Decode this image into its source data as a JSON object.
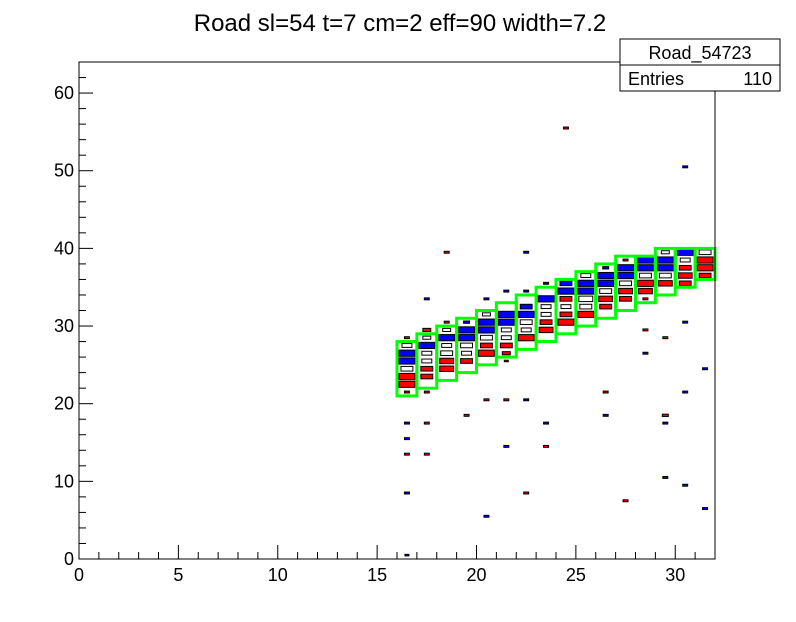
{
  "chart_data": {
    "type": "heatmap",
    "title": "Road sl=54 t=7 cm=2 eff=90 width=7.2",
    "xlim": [
      0,
      32
    ],
    "ylim": [
      0,
      64
    ],
    "x_ticks": [
      0,
      5,
      10,
      15,
      20,
      25,
      30
    ],
    "y_ticks": [
      0,
      10,
      20,
      30,
      40,
      50,
      60
    ],
    "grid": false,
    "stats_box": {
      "name": "Road_54723",
      "entries_label": "Entries",
      "entries_value": "110"
    },
    "colors": {
      "red": "#ff0000",
      "blue": "#0000ff",
      "white": "#ffffff",
      "road": "#00ff00",
      "outline": "#000000"
    },
    "cells": [
      {
        "x": 16,
        "y": 0,
        "c": "blue",
        "s": 0.2
      },
      {
        "x": 16,
        "y": 8,
        "c": "blue",
        "s": 0.25
      },
      {
        "x": 16,
        "y": 13,
        "c": "red",
        "s": 0.25
      },
      {
        "x": 16,
        "y": 15,
        "c": "blue",
        "s": 0.25
      },
      {
        "x": 16,
        "y": 17,
        "c": "blue",
        "s": 0.25
      },
      {
        "x": 16,
        "y": 21,
        "c": "red",
        "s": 0.25
      },
      {
        "x": 16,
        "y": 22,
        "c": "red",
        "s": 0.8
      },
      {
        "x": 16,
        "y": 23,
        "c": "red",
        "s": 0.8
      },
      {
        "x": 16,
        "y": 24,
        "c": "white",
        "s": 0.6
      },
      {
        "x": 16,
        "y": 25,
        "c": "blue",
        "s": 0.8
      },
      {
        "x": 16,
        "y": 26,
        "c": "blue",
        "s": 0.8
      },
      {
        "x": 16,
        "y": 27,
        "c": "white",
        "s": 0.5
      },
      {
        "x": 16,
        "y": 28,
        "c": "red",
        "s": 0.25
      },
      {
        "x": 17,
        "y": 13,
        "c": "red",
        "s": 0.25
      },
      {
        "x": 17,
        "y": 17,
        "c": "red",
        "s": 0.25
      },
      {
        "x": 17,
        "y": 21,
        "c": "red",
        "s": 0.25
      },
      {
        "x": 17,
        "y": 23,
        "c": "red",
        "s": 0.6
      },
      {
        "x": 17,
        "y": 24,
        "c": "red",
        "s": 0.6
      },
      {
        "x": 17,
        "y": 25,
        "c": "white",
        "s": 0.5
      },
      {
        "x": 17,
        "y": 26,
        "c": "white",
        "s": 0.5
      },
      {
        "x": 17,
        "y": 27,
        "c": "blue",
        "s": 0.8
      },
      {
        "x": 17,
        "y": 28,
        "c": "white",
        "s": 0.4
      },
      {
        "x": 17,
        "y": 29,
        "c": "red",
        "s": 0.4
      },
      {
        "x": 17,
        "y": 33,
        "c": "blue",
        "s": 0.25
      },
      {
        "x": 18,
        "y": 24,
        "c": "red",
        "s": 0.7
      },
      {
        "x": 18,
        "y": 25,
        "c": "red",
        "s": 0.7
      },
      {
        "x": 18,
        "y": 26,
        "c": "white",
        "s": 0.6
      },
      {
        "x": 18,
        "y": 27,
        "c": "white",
        "s": 0.5
      },
      {
        "x": 18,
        "y": 28,
        "c": "blue",
        "s": 0.8
      },
      {
        "x": 18,
        "y": 29,
        "c": "white",
        "s": 0.4
      },
      {
        "x": 18,
        "y": 30,
        "c": "red",
        "s": 0.25
      },
      {
        "x": 18,
        "y": 39,
        "c": "red",
        "s": 0.25
      },
      {
        "x": 19,
        "y": 18,
        "c": "red",
        "s": 0.25
      },
      {
        "x": 19,
        "y": 25,
        "c": "red",
        "s": 0.6
      },
      {
        "x": 19,
        "y": 26,
        "c": "white",
        "s": 0.5
      },
      {
        "x": 19,
        "y": 27,
        "c": "white",
        "s": 0.6
      },
      {
        "x": 19,
        "y": 28,
        "c": "blue",
        "s": 0.8
      },
      {
        "x": 19,
        "y": 29,
        "c": "blue",
        "s": 0.8
      },
      {
        "x": 19,
        "y": 30,
        "c": "blue",
        "s": 0.3
      },
      {
        "x": 20,
        "y": 5,
        "c": "blue",
        "s": 0.25
      },
      {
        "x": 20,
        "y": 20,
        "c": "red",
        "s": 0.25
      },
      {
        "x": 20,
        "y": 26,
        "c": "red",
        "s": 0.8
      },
      {
        "x": 20,
        "y": 27,
        "c": "red",
        "s": 0.6
      },
      {
        "x": 20,
        "y": 28,
        "c": "white",
        "s": 0.6
      },
      {
        "x": 20,
        "y": 29,
        "c": "blue",
        "s": 0.8
      },
      {
        "x": 20,
        "y": 30,
        "c": "blue",
        "s": 0.8
      },
      {
        "x": 20,
        "y": 31,
        "c": "white",
        "s": 0.4
      },
      {
        "x": 20,
        "y": 33,
        "c": "blue",
        "s": 0.25
      },
      {
        "x": 21,
        "y": 14,
        "c": "blue",
        "s": 0.25
      },
      {
        "x": 21,
        "y": 20,
        "c": "red",
        "s": 0.25
      },
      {
        "x": 21,
        "y": 25,
        "c": "red",
        "s": 0.2
      },
      {
        "x": 21,
        "y": 26,
        "c": "red",
        "s": 0.4
      },
      {
        "x": 21,
        "y": 27,
        "c": "red",
        "s": 0.6
      },
      {
        "x": 21,
        "y": 28,
        "c": "white",
        "s": 0.5
      },
      {
        "x": 21,
        "y": 29,
        "c": "white",
        "s": 0.5
      },
      {
        "x": 21,
        "y": 30,
        "c": "blue",
        "s": 0.8
      },
      {
        "x": 21,
        "y": 31,
        "c": "blue",
        "s": 0.8
      },
      {
        "x": 21,
        "y": 34,
        "c": "blue",
        "s": 0.25
      },
      {
        "x": 22,
        "y": 8,
        "c": "red",
        "s": 0.25
      },
      {
        "x": 22,
        "y": 20,
        "c": "blue",
        "s": 0.25
      },
      {
        "x": 22,
        "y": 28,
        "c": "red",
        "s": 0.8
      },
      {
        "x": 22,
        "y": 29,
        "c": "white",
        "s": 0.5
      },
      {
        "x": 22,
        "y": 30,
        "c": "white",
        "s": 0.6
      },
      {
        "x": 22,
        "y": 31,
        "c": "blue",
        "s": 0.8
      },
      {
        "x": 22,
        "y": 32,
        "c": "blue",
        "s": 0.6
      },
      {
        "x": 22,
        "y": 34,
        "c": "blue",
        "s": 0.25
      },
      {
        "x": 22,
        "y": 39,
        "c": "blue",
        "s": 0.25
      },
      {
        "x": 23,
        "y": 14,
        "c": "red",
        "s": 0.25
      },
      {
        "x": 23,
        "y": 17,
        "c": "blue",
        "s": 0.25
      },
      {
        "x": 23,
        "y": 29,
        "c": "red",
        "s": 0.7
      },
      {
        "x": 23,
        "y": 30,
        "c": "red",
        "s": 0.6
      },
      {
        "x": 23,
        "y": 31,
        "c": "white",
        "s": 0.5
      },
      {
        "x": 23,
        "y": 32,
        "c": "white",
        "s": 0.5
      },
      {
        "x": 23,
        "y": 33,
        "c": "blue",
        "s": 0.8
      },
      {
        "x": 23,
        "y": 35,
        "c": "blue",
        "s": 0.25
      },
      {
        "x": 24,
        "y": 30,
        "c": "red",
        "s": 0.8
      },
      {
        "x": 24,
        "y": 31,
        "c": "red",
        "s": 0.6
      },
      {
        "x": 24,
        "y": 32,
        "c": "white",
        "s": 0.5
      },
      {
        "x": 24,
        "y": 33,
        "c": "red",
        "s": 0.6
      },
      {
        "x": 24,
        "y": 34,
        "c": "blue",
        "s": 0.8
      },
      {
        "x": 24,
        "y": 35,
        "c": "blue",
        "s": 0.6
      },
      {
        "x": 24,
        "y": 55,
        "c": "red",
        "s": 0.25
      },
      {
        "x": 25,
        "y": 31,
        "c": "red",
        "s": 0.8
      },
      {
        "x": 25,
        "y": 32,
        "c": "white",
        "s": 0.6
      },
      {
        "x": 25,
        "y": 33,
        "c": "white",
        "s": 0.7
      },
      {
        "x": 25,
        "y": 34,
        "c": "blue",
        "s": 0.8
      },
      {
        "x": 25,
        "y": 35,
        "c": "blue",
        "s": 0.8
      },
      {
        "x": 25,
        "y": 36,
        "c": "white",
        "s": 0.5
      },
      {
        "x": 26,
        "y": 18,
        "c": "blue",
        "s": 0.25
      },
      {
        "x": 26,
        "y": 21,
        "c": "red",
        "s": 0.25
      },
      {
        "x": 26,
        "y": 32,
        "c": "red",
        "s": 0.6
      },
      {
        "x": 26,
        "y": 33,
        "c": "red",
        "s": 0.7
      },
      {
        "x": 26,
        "y": 34,
        "c": "white",
        "s": 0.6
      },
      {
        "x": 26,
        "y": 35,
        "c": "blue",
        "s": 0.8
      },
      {
        "x": 26,
        "y": 36,
        "c": "blue",
        "s": 0.8
      },
      {
        "x": 26,
        "y": 37,
        "c": "blue",
        "s": 0.3
      },
      {
        "x": 27,
        "y": 7,
        "c": "red",
        "s": 0.25
      },
      {
        "x": 27,
        "y": 33,
        "c": "red",
        "s": 0.6
      },
      {
        "x": 27,
        "y": 34,
        "c": "red",
        "s": 0.7
      },
      {
        "x": 27,
        "y": 35,
        "c": "white",
        "s": 0.6
      },
      {
        "x": 27,
        "y": 36,
        "c": "blue",
        "s": 0.8
      },
      {
        "x": 27,
        "y": 37,
        "c": "blue",
        "s": 0.8
      },
      {
        "x": 27,
        "y": 38,
        "c": "red",
        "s": 0.25
      },
      {
        "x": 28,
        "y": 26,
        "c": "blue",
        "s": 0.25
      },
      {
        "x": 28,
        "y": 29,
        "c": "red",
        "s": 0.25
      },
      {
        "x": 28,
        "y": 33,
        "c": "red",
        "s": 0.25
      },
      {
        "x": 28,
        "y": 34,
        "c": "red",
        "s": 0.7
      },
      {
        "x": 28,
        "y": 35,
        "c": "red",
        "s": 0.8
      },
      {
        "x": 28,
        "y": 36,
        "c": "white",
        "s": 0.6
      },
      {
        "x": 28,
        "y": 37,
        "c": "blue",
        "s": 0.8
      },
      {
        "x": 28,
        "y": 38,
        "c": "blue",
        "s": 0.8
      },
      {
        "x": 29,
        "y": 10,
        "c": "blue",
        "s": 0.25
      },
      {
        "x": 29,
        "y": 17,
        "c": "blue",
        "s": 0.25
      },
      {
        "x": 29,
        "y": 18,
        "c": "red",
        "s": 0.3
      },
      {
        "x": 29,
        "y": 28,
        "c": "red",
        "s": 0.25
      },
      {
        "x": 29,
        "y": 35,
        "c": "red",
        "s": 0.7
      },
      {
        "x": 29,
        "y": 36,
        "c": "white",
        "s": 0.6
      },
      {
        "x": 29,
        "y": 37,
        "c": "blue",
        "s": 0.8
      },
      {
        "x": 29,
        "y": 38,
        "c": "blue",
        "s": 0.8
      },
      {
        "x": 29,
        "y": 39,
        "c": "white",
        "s": 0.4
      },
      {
        "x": 30,
        "y": 9,
        "c": "blue",
        "s": 0.25
      },
      {
        "x": 30,
        "y": 21,
        "c": "blue",
        "s": 0.25
      },
      {
        "x": 30,
        "y": 30,
        "c": "blue",
        "s": 0.25
      },
      {
        "x": 30,
        "y": 35,
        "c": "red",
        "s": 0.6
      },
      {
        "x": 30,
        "y": 36,
        "c": "red",
        "s": 0.7
      },
      {
        "x": 30,
        "y": 37,
        "c": "red",
        "s": 0.6
      },
      {
        "x": 30,
        "y": 38,
        "c": "white",
        "s": 0.5
      },
      {
        "x": 30,
        "y": 39,
        "c": "blue",
        "s": 0.8
      },
      {
        "x": 30,
        "y": 50,
        "c": "blue",
        "s": 0.25
      },
      {
        "x": 31,
        "y": 6,
        "c": "blue",
        "s": 0.25
      },
      {
        "x": 31,
        "y": 24,
        "c": "blue",
        "s": 0.25
      },
      {
        "x": 31,
        "y": 36,
        "c": "red",
        "s": 0.6
      },
      {
        "x": 31,
        "y": 37,
        "c": "red",
        "s": 0.8
      },
      {
        "x": 31,
        "y": 38,
        "c": "red",
        "s": 0.8
      },
      {
        "x": 31,
        "y": 39,
        "c": "white",
        "s": 0.6
      }
    ],
    "road": [
      {
        "x": 16,
        "y0": 21,
        "y1": 28
      },
      {
        "x": 17,
        "y0": 22,
        "y1": 29
      },
      {
        "x": 18,
        "y0": 23,
        "y1": 30
      },
      {
        "x": 19,
        "y0": 24,
        "y1": 31
      },
      {
        "x": 20,
        "y0": 25,
        "y1": 32
      },
      {
        "x": 21,
        "y0": 26,
        "y1": 33
      },
      {
        "x": 22,
        "y0": 27,
        "y1": 34
      },
      {
        "x": 23,
        "y0": 28,
        "y1": 35
      },
      {
        "x": 24,
        "y0": 29,
        "y1": 36
      },
      {
        "x": 25,
        "y0": 30,
        "y1": 37
      },
      {
        "x": 26,
        "y0": 31,
        "y1": 38
      },
      {
        "x": 27,
        "y0": 32,
        "y1": 39
      },
      {
        "x": 28,
        "y0": 33,
        "y1": 39
      },
      {
        "x": 29,
        "y0": 34,
        "y1": 40
      },
      {
        "x": 30,
        "y0": 35,
        "y1": 40
      },
      {
        "x": 31,
        "y0": 36,
        "y1": 40
      }
    ]
  }
}
